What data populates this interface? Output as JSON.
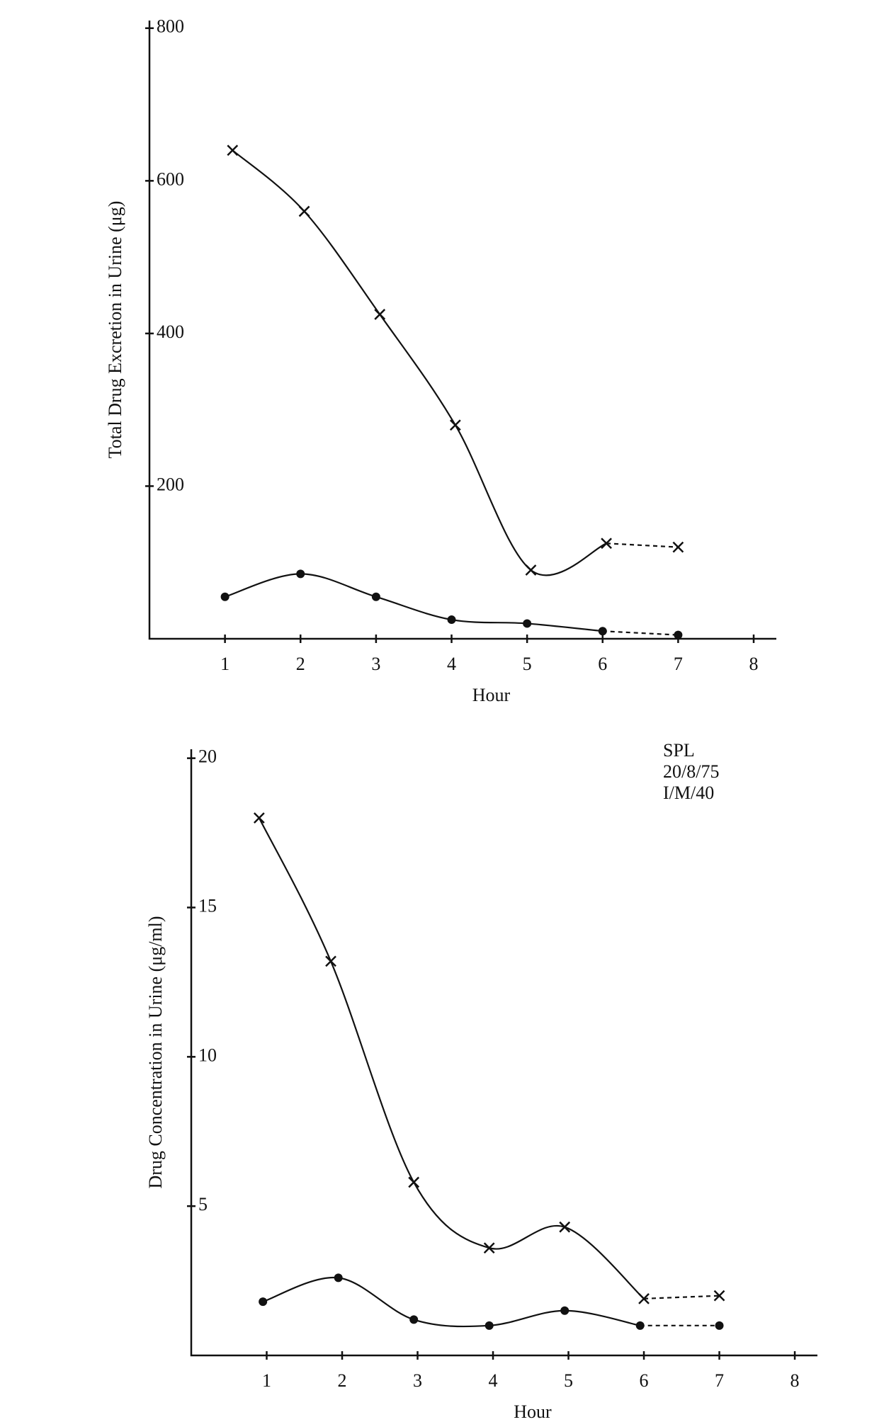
{
  "chart_data": [
    {
      "type": "line",
      "y_label": "Total Drug Excretion in Urine (μg)",
      "x_label": "Hour",
      "xlim": [
        0,
        8.3
      ],
      "ylim": [
        0,
        810
      ],
      "xticks": [
        1,
        2,
        3,
        4,
        5,
        6,
        7,
        8
      ],
      "yticks": [
        200,
        400,
        600,
        800
      ],
      "dashed_last": true,
      "series": [
        {
          "color": "#111111",
          "marker": "x",
          "x": [
            1.1,
            2.05,
            3.05,
            4.05,
            5.05,
            6.05,
            7.0
          ],
          "values": [
            640,
            560,
            425,
            280,
            90,
            125,
            120
          ]
        },
        {
          "color": "#111111",
          "marker": "dot",
          "x": [
            1.0,
            2.0,
            3.0,
            4.0,
            5.0,
            6.0,
            7.0
          ],
          "values": [
            55,
            85,
            55,
            25,
            20,
            10,
            5
          ]
        }
      ]
    },
    {
      "type": "line",
      "y_label": "Drug Concentration in Urine (μg/ml)",
      "x_label": "Hour",
      "xlim": [
        0,
        8.3
      ],
      "ylim": [
        0,
        20.3
      ],
      "xticks": [
        1,
        2,
        3,
        4,
        5,
        6,
        7,
        8
      ],
      "yticks": [
        5,
        10,
        15,
        20
      ],
      "dashed_last": true,
      "annotations": [
        "SPL",
        "20/8/75",
        "I/M/40"
      ],
      "series": [
        {
          "color": "#111111",
          "marker": "x",
          "x": [
            0.9,
            1.85,
            2.95,
            3.95,
            4.95,
            6.0,
            7.0
          ],
          "values": [
            18,
            13.2,
            5.8,
            3.6,
            4.3,
            1.9,
            2.0
          ]
        },
        {
          "color": "#111111",
          "marker": "dot",
          "x": [
            0.95,
            1.95,
            2.95,
            3.95,
            4.95,
            5.95,
            7.0
          ],
          "values": [
            1.8,
            2.6,
            1.2,
            1.0,
            1.5,
            1.0,
            1.0
          ]
        }
      ]
    }
  ]
}
